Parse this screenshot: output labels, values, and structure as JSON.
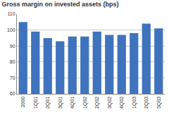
{
  "chart_data": {
    "type": "bar",
    "title": "Gross margin on invested assets (bps)",
    "categories": [
      "2000",
      "1Q01",
      "2Q01",
      "3Q01",
      "4Q01",
      "1Q02",
      "2Q02",
      "3Q02",
      "4Q02",
      "1Q03",
      "2Q03",
      "3Q03"
    ],
    "values": [
      105,
      99,
      95,
      93,
      96,
      96,
      99,
      97,
      97,
      98,
      104,
      101
    ],
    "color": "#3f73bd",
    "ylim": [
      60,
      110
    ],
    "yticks": [
      60,
      70,
      80,
      90,
      100,
      110
    ],
    "grid": true
  }
}
